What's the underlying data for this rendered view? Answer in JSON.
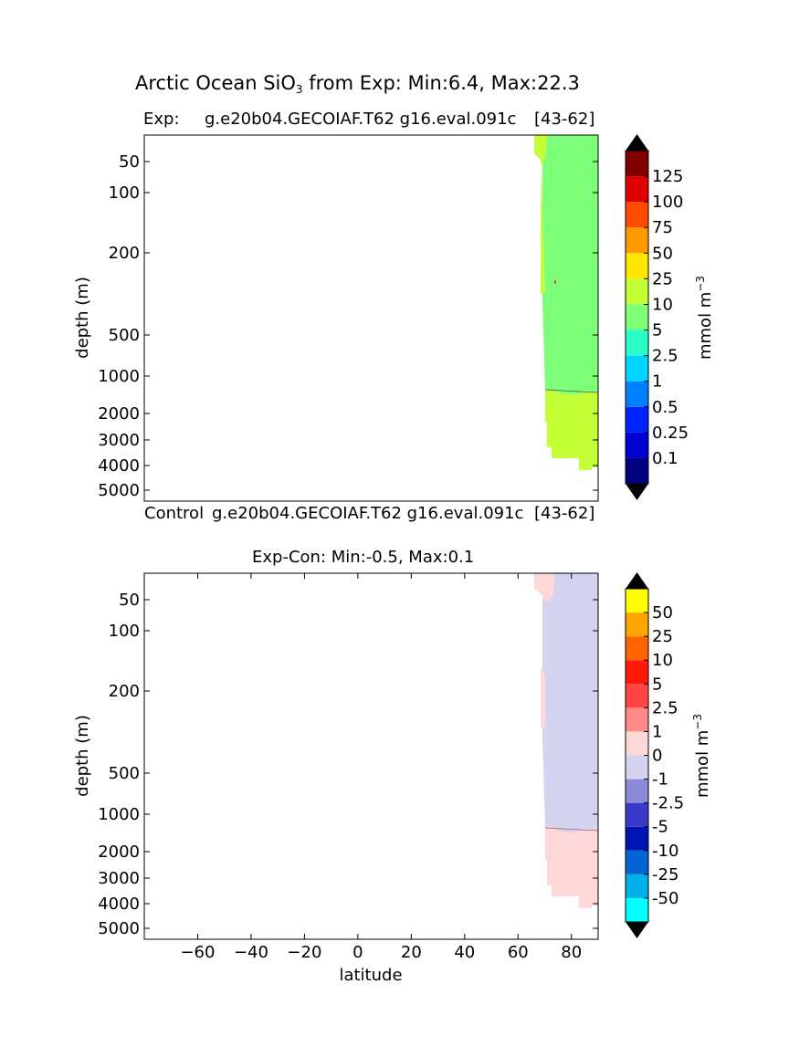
{
  "figure": {
    "title_pre": "Arctic Ocean SiO",
    "title_sub": "3",
    "title_post": " from Exp: Min:6.4, Max:22.3"
  },
  "chart_data": [
    {
      "type": "heatmap",
      "panel": "top",
      "left_label": "Exp:",
      "center_label": "g.e20b04.GECOIAF.T62 g16.eval.091c",
      "right_label": "[43-62]",
      "bottom_left_label": "Control",
      "bottom_center_label": "g.e20b04.GECOIAF.T62 g16.eval.091c",
      "bottom_right_label": "[43-62]",
      "ylabel": "depth (m)",
      "xlim": [
        -80,
        90
      ],
      "yticks": [
        50,
        100,
        200,
        500,
        1000,
        2000,
        3000,
        4000,
        5000
      ],
      "colorbar": {
        "label": "mmol m",
        "label_sup": "−3",
        "levels": [
          "0.1",
          "0.25",
          "0.5",
          "1",
          "2.5",
          "5",
          "10",
          "25",
          "50",
          "75",
          "100",
          "125"
        ],
        "colors": [
          "#000080",
          "#0000d0",
          "#0022ff",
          "#0080ff",
          "#00d4ff",
          "#29ffc6",
          "#7dff7a",
          "#c4ff36",
          "#ffe600",
          "#ff9900",
          "#ff4a00",
          "#e00000",
          "#800000"
        ]
      },
      "fields": [
        {
          "range": "5-10",
          "color": "#7dff7a",
          "region": "latitude ~70 to 90, depth 25 to ~1500 m"
        },
        {
          "range": "10-25",
          "color": "#c4ff36",
          "region": "latitude ~67 to 72 near surface; latitude ~70 to 90 below ~1500 m"
        }
      ]
    },
    {
      "type": "heatmap",
      "panel": "bottom",
      "title": "Exp-Con: Min:-0.5, Max:0.1",
      "xlabel": "latitude",
      "ylabel": "depth (m)",
      "xlim": [
        -80,
        90
      ],
      "xticks": [
        -60,
        -40,
        -20,
        0,
        20,
        40,
        60,
        80
      ],
      "yticks": [
        50,
        100,
        200,
        500,
        1000,
        2000,
        3000,
        4000,
        5000
      ],
      "colorbar": {
        "label": "mmol m",
        "label_sup": "−3",
        "levels": [
          "-50",
          "-25",
          "-10",
          "-5",
          "-2.5",
          "-1",
          "0",
          "1",
          "2.5",
          "5",
          "10",
          "25",
          "50"
        ],
        "colors": [
          "#00ffff",
          "#00b0e6",
          "#0064d2",
          "#0014b4",
          "#3a3ac8",
          "#8a8ad8",
          "#d4d4f0",
          "#ffd8d8",
          "#ff8a8a",
          "#ff4444",
          "#ff1a0a",
          "#ff6400",
          "#ffa500",
          "#ffff00"
        ]
      },
      "fields": [
        {
          "range": "-1-0",
          "color": "#d4d4f0",
          "region": "latitude ~70 to 90, depth 25 to ~1500 m"
        },
        {
          "range": "0-1",
          "color": "#ffd8d8",
          "region": "latitude ~67 to 72 near surface; latitude ~70 to 90 below ~1500 m"
        }
      ]
    }
  ]
}
